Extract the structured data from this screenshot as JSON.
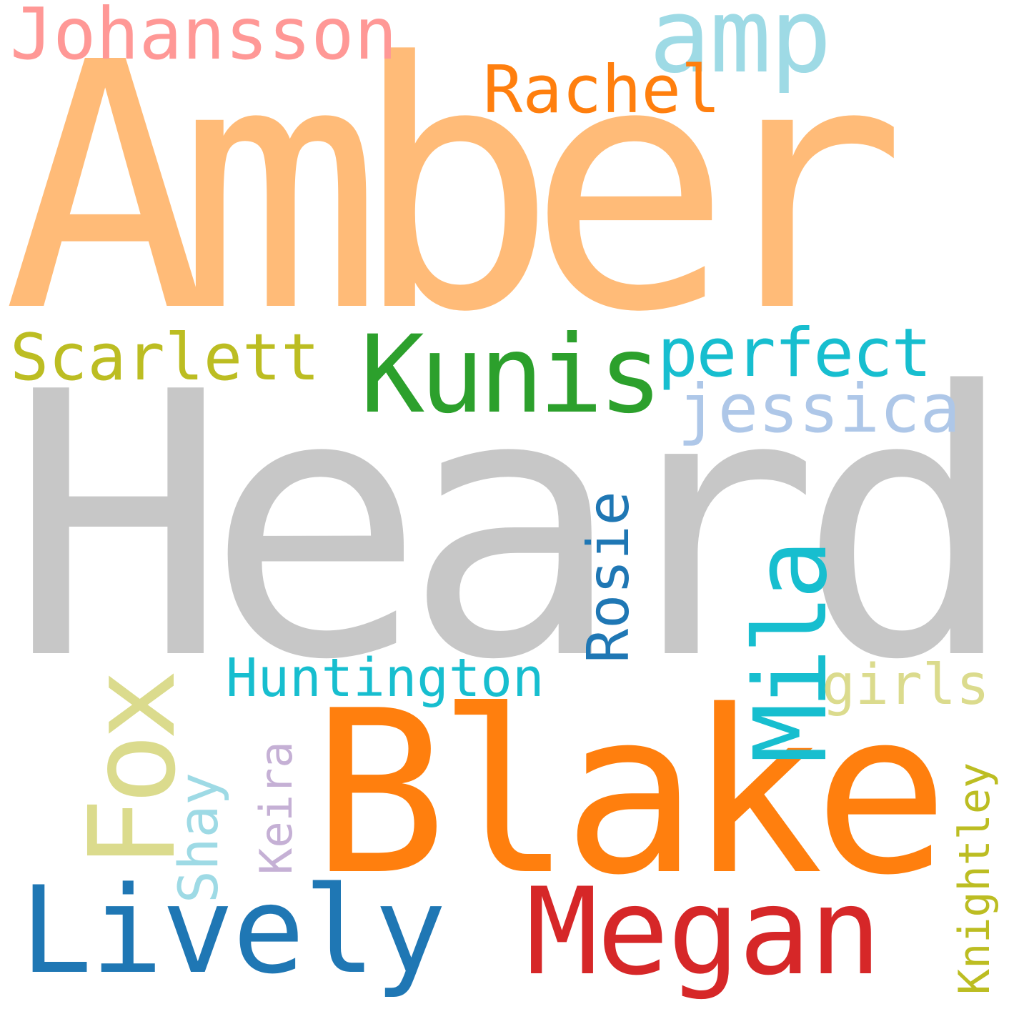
{
  "words": {
    "amber": {
      "text": "Amber",
      "color": "#FFBB78"
    },
    "heard": {
      "text": "Heard",
      "color": "#C7C7C7"
    },
    "blake": {
      "text": "Blake",
      "color": "#FF7F0E"
    },
    "lively": {
      "text": "Lively",
      "color": "#1F77B4"
    },
    "megan": {
      "text": "Megan",
      "color": "#D62728"
    },
    "fox": {
      "text": "Fox",
      "color": "#DBDB8D"
    },
    "kunis": {
      "text": "Kunis",
      "color": "#2CA02C"
    },
    "mila": {
      "text": "Mila",
      "color": "#17BECF"
    },
    "johansson": {
      "text": "Johansson",
      "color": "#FF9896"
    },
    "amp": {
      "text": "amp",
      "color": "#9EDAE5"
    },
    "rachel": {
      "text": "Rachel",
      "color": "#FF7F0E"
    },
    "scarlett": {
      "text": "Scarlett",
      "color": "#BCBD22"
    },
    "perfect": {
      "text": "perfect",
      "color": "#17BECF"
    },
    "jessica": {
      "text": "jessica",
      "color": "#AEC7E8"
    },
    "rosie": {
      "text": "Rosie",
      "color": "#1F77B4"
    },
    "huntington": {
      "text": "Huntington",
      "color": "#17BECF"
    },
    "girls": {
      "text": "girls",
      "color": "#DBDB8D"
    },
    "shay": {
      "text": "Shay",
      "color": "#9EDAE5"
    },
    "keira": {
      "text": "Keira",
      "color": "#C5B0D5"
    },
    "knightley": {
      "text": "Knightley",
      "color": "#BCBD22"
    }
  }
}
